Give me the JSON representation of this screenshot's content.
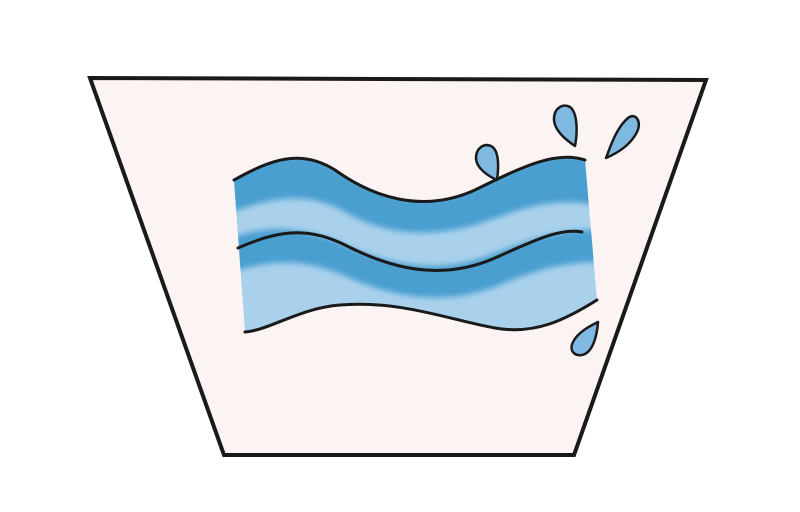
{
  "figure": {
    "icon": "wash-tub-with-water-waves-icon",
    "colors": {
      "background": "#ffffff",
      "tub_fill": "#fbf4f2",
      "outline": "#1a1a1a",
      "water_dark": "#4a9fd0",
      "water_light": "#a9d1ec",
      "drop_fill": "#7fb9e2"
    }
  }
}
